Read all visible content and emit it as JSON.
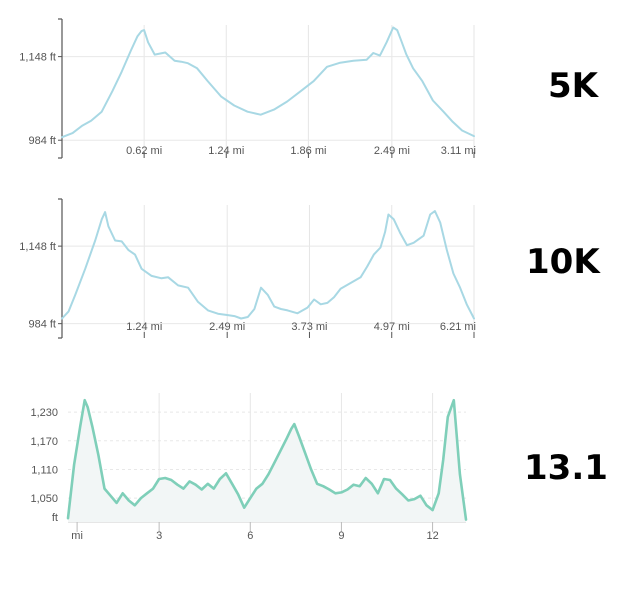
{
  "labels": {
    "five_k": "5K",
    "ten_k": "10K",
    "half": "13.1"
  },
  "chart_data": [
    {
      "type": "line",
      "name": "5K",
      "xlabel": "",
      "ylabel": "",
      "color": "#a8d8e4",
      "xlim": [
        0,
        3.11
      ],
      "ylim": [
        955,
        1210
      ],
      "y_ticks": [
        {
          "value": 1148,
          "label": "1,148 ft"
        },
        {
          "value": 984,
          "label": "984 ft"
        }
      ],
      "x_ticks": [
        {
          "value": 0.62,
          "label": "0.62 mi"
        },
        {
          "value": 1.24,
          "label": "1.24 mi"
        },
        {
          "value": 1.86,
          "label": "1.86 mi"
        },
        {
          "value": 2.49,
          "label": "2.49 mi"
        },
        {
          "value": 3.11,
          "label": "3.11 mi"
        }
      ],
      "x": [
        0,
        0.08,
        0.15,
        0.22,
        0.3,
        0.38,
        0.45,
        0.52,
        0.57,
        0.6,
        0.62,
        0.65,
        0.7,
        0.78,
        0.85,
        0.9,
        0.95,
        1.02,
        1.1,
        1.2,
        1.3,
        1.4,
        1.5,
        1.6,
        1.7,
        1.8,
        1.9,
        2.0,
        2.1,
        2.2,
        2.3,
        2.35,
        2.4,
        2.45,
        2.5,
        2.53,
        2.56,
        2.6,
        2.65,
        2.72,
        2.8,
        2.88,
        2.95,
        3.02,
        3.11
      ],
      "values": [
        990,
        998,
        1012,
        1022,
        1040,
        1080,
        1118,
        1160,
        1188,
        1198,
        1200,
        1176,
        1152,
        1156,
        1140,
        1138,
        1135,
        1125,
        1100,
        1070,
        1052,
        1040,
        1034,
        1044,
        1060,
        1080,
        1100,
        1128,
        1136,
        1140,
        1142,
        1155,
        1150,
        1176,
        1205,
        1200,
        1180,
        1152,
        1125,
        1100,
        1062,
        1040,
        1020,
        1003,
        992
      ]
    },
    {
      "type": "line",
      "name": "10K",
      "xlabel": "",
      "ylabel": "",
      "color": "#a8d8e4",
      "xlim": [
        0,
        6.21
      ],
      "ylim": [
        960,
        1235
      ],
      "y_ticks": [
        {
          "value": 1148,
          "label": "1,148 ft"
        },
        {
          "value": 984,
          "label": "984 ft"
        }
      ],
      "x_ticks": [
        {
          "value": 1.24,
          "label": "1.24 mi"
        },
        {
          "value": 2.49,
          "label": "2.49 mi"
        },
        {
          "value": 3.73,
          "label": "3.73 mi"
        },
        {
          "value": 4.97,
          "label": "4.97 mi"
        },
        {
          "value": 6.21,
          "label": "6.21 mi"
        }
      ],
      "x": [
        0,
        0.1,
        0.2,
        0.35,
        0.5,
        0.6,
        0.65,
        0.7,
        0.8,
        0.9,
        1.0,
        1.1,
        1.2,
        1.35,
        1.5,
        1.6,
        1.75,
        1.9,
        2.05,
        2.2,
        2.35,
        2.5,
        2.6,
        2.7,
        2.8,
        2.9,
        3.0,
        3.1,
        3.2,
        3.3,
        3.4,
        3.55,
        3.7,
        3.8,
        3.9,
        4.0,
        4.1,
        4.2,
        4.35,
        4.5,
        4.6,
        4.7,
        4.8,
        4.87,
        4.92,
        5.0,
        5.1,
        5.2,
        5.3,
        5.45,
        5.55,
        5.62,
        5.7,
        5.8,
        5.9,
        6.0,
        6.1,
        6.21
      ],
      "values": [
        995,
        1010,
        1045,
        1100,
        1160,
        1205,
        1220,
        1190,
        1160,
        1158,
        1140,
        1130,
        1100,
        1085,
        1080,
        1082,
        1065,
        1060,
        1030,
        1012,
        1005,
        1002,
        1000,
        995,
        998,
        1015,
        1060,
        1045,
        1020,
        1015,
        1012,
        1006,
        1018,
        1035,
        1025,
        1028,
        1040,
        1058,
        1070,
        1082,
        1105,
        1130,
        1145,
        1178,
        1215,
        1205,
        1175,
        1150,
        1155,
        1170,
        1215,
        1222,
        1198,
        1140,
        1090,
        1060,
        1025,
        995
      ]
    },
    {
      "type": "area",
      "name": "13.1",
      "xlabel": "",
      "ylabel": "",
      "color": "#7fcfb9",
      "fill": "#f2f6f6",
      "xlim": [
        0,
        13.1
      ],
      "ylim": [
        1000,
        1270
      ],
      "y_ticks": [
        {
          "value": 1230,
          "label": "1,230"
        },
        {
          "value": 1170,
          "label": "1,170"
        },
        {
          "value": 1110,
          "label": "1,110"
        },
        {
          "value": 1050,
          "label": "1,050"
        },
        {
          "value": 1010,
          "label": "ft"
        }
      ],
      "x_ticks": [
        {
          "value": 0.3,
          "label": "mi"
        },
        {
          "value": 3,
          "label": "3"
        },
        {
          "value": 6,
          "label": "6"
        },
        {
          "value": 9,
          "label": "9"
        },
        {
          "value": 12,
          "label": "12"
        }
      ],
      "x": [
        0,
        0.2,
        0.4,
        0.55,
        0.65,
        0.8,
        1.0,
        1.2,
        1.4,
        1.6,
        1.8,
        2.0,
        2.2,
        2.4,
        2.6,
        2.8,
        3.0,
        3.2,
        3.4,
        3.6,
        3.8,
        4.0,
        4.2,
        4.4,
        4.6,
        4.8,
        5.0,
        5.2,
        5.4,
        5.6,
        5.8,
        6.0,
        6.2,
        6.4,
        6.6,
        6.8,
        7.0,
        7.2,
        7.35,
        7.45,
        7.6,
        7.8,
        8.0,
        8.2,
        8.4,
        8.6,
        8.8,
        9.0,
        9.2,
        9.4,
        9.6,
        9.8,
        10.0,
        10.2,
        10.4,
        10.6,
        10.8,
        11.0,
        11.2,
        11.4,
        11.6,
        11.8,
        12.0,
        12.2,
        12.35,
        12.5,
        12.7,
        12.9,
        13.1
      ],
      "values": [
        1008,
        1120,
        1200,
        1255,
        1240,
        1200,
        1140,
        1070,
        1055,
        1040,
        1060,
        1045,
        1035,
        1050,
        1060,
        1070,
        1090,
        1092,
        1088,
        1078,
        1070,
        1085,
        1078,
        1068,
        1080,
        1070,
        1090,
        1102,
        1080,
        1058,
        1030,
        1050,
        1070,
        1080,
        1100,
        1125,
        1150,
        1175,
        1195,
        1205,
        1180,
        1145,
        1110,
        1080,
        1075,
        1068,
        1060,
        1062,
        1068,
        1078,
        1075,
        1092,
        1080,
        1060,
        1090,
        1088,
        1070,
        1058,
        1045,
        1048,
        1055,
        1035,
        1025,
        1060,
        1130,
        1220,
        1255,
        1100,
        1005
      ]
    }
  ]
}
